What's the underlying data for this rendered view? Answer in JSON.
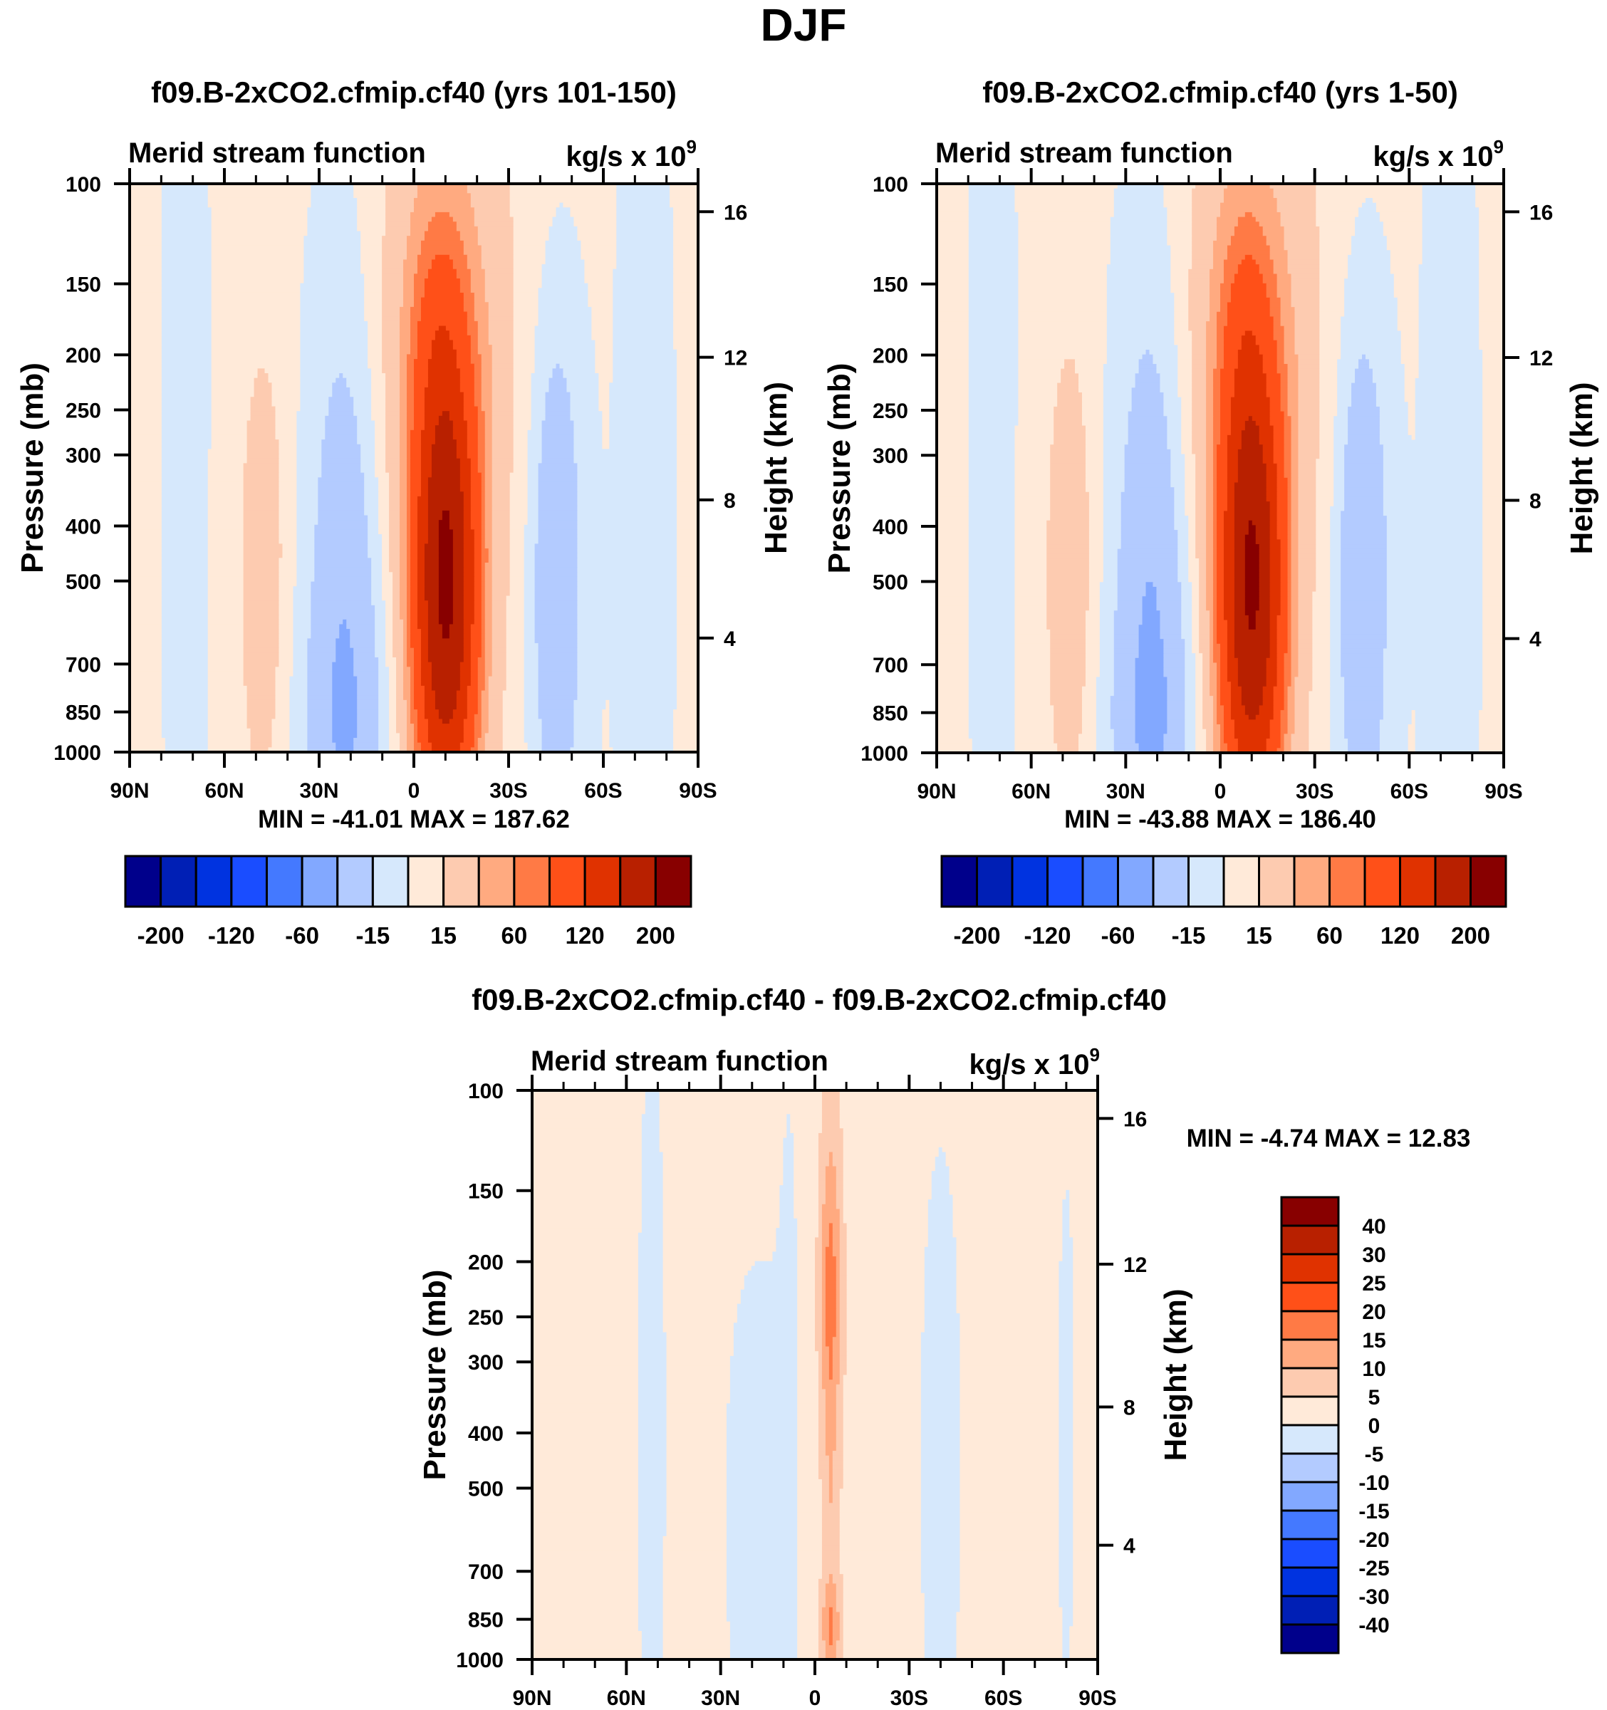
{
  "figure": {
    "title": "DJF"
  },
  "colors": {
    "main_levels": [
      "#00008b",
      "#001fb5",
      "#0033e0",
      "#1a4dff",
      "#4479ff",
      "#82a8ff",
      "#b3cbff",
      "#d6e8fc",
      "#ffead9",
      "#fdcbb0",
      "#ffaa80",
      "#ff7a45",
      "#ff5018",
      "#e03200",
      "#b82000",
      "#880000"
    ],
    "diff_levels": [
      "#00008b",
      "#001fb5",
      "#0033e0",
      "#1a4dff",
      "#4479ff",
      "#82a8ff",
      "#b3cbff",
      "#d6e8fc",
      "#ffead9",
      "#fdcbb0",
      "#ffaa80",
      "#ff7a45",
      "#ff5018",
      "#e03200",
      "#b82000",
      "#880000"
    ]
  },
  "chart_data": [
    {
      "id": "panel-left",
      "type": "heatmap",
      "title": "f09.B-2xCO2.cfmip.cf40 (yrs 101-150)",
      "left_string": "Merid stream function",
      "right_string": "kg/s x 10",
      "right_string_exp": "9",
      "xlabel": "",
      "ylabel": "Pressure (mb)",
      "ylabel_right": "Height (km)",
      "x_range": [
        90,
        -90
      ],
      "x_ticks": [
        {
          "v": 90,
          "label": "90N"
        },
        {
          "v": 60,
          "label": "60N"
        },
        {
          "v": 30,
          "label": "30N"
        },
        {
          "v": 0,
          "label": "0"
        },
        {
          "v": -30,
          "label": "30S"
        },
        {
          "v": -60,
          "label": "60S"
        },
        {
          "v": -90,
          "label": "90S"
        }
      ],
      "y_range": [
        100,
        1000
      ],
      "y_scale": "log",
      "y_ticks": [
        100,
        150,
        200,
        250,
        300,
        400,
        500,
        700,
        850,
        1000
      ],
      "y_right_ticks": [
        {
          "km": 16,
          "p": 112
        },
        {
          "km": 12,
          "p": 202
        },
        {
          "km": 8,
          "p": 360
        },
        {
          "km": 4,
          "p": 630
        }
      ],
      "minmax_text": "MIN = -41.01   MAX = 187.62",
      "min": -41.01,
      "max": 187.62,
      "levels": [
        -200,
        -160,
        -120,
        -80,
        -60,
        -40,
        -15,
        0,
        15,
        40,
        60,
        80,
        120,
        160,
        200
      ],
      "colorbar_labels": [
        "-200",
        "-120",
        "-60",
        "-15",
        "15",
        "60",
        "120",
        "200"
      ],
      "colorbar_label_levels": [
        -200,
        -120,
        -60,
        -15,
        15,
        60,
        120,
        200
      ],
      "features": [
        {
          "lat": -10,
          "p": 550,
          "amp": 188,
          "wlat": 11,
          "wp": 0.42,
          "sharp": 2.2
        },
        {
          "lat": -8,
          "p": 180,
          "amp": 70,
          "wlat": 14,
          "wp": 0.35,
          "sharp": 1.6
        },
        {
          "lat": -45,
          "p": 500,
          "amp": -41,
          "wlat": 8,
          "wp": 0.45,
          "sharp": 2.0
        },
        {
          "lat": 22,
          "p": 550,
          "amp": -36,
          "wlat": 11,
          "wp": 0.55,
          "sharp": 1.8
        },
        {
          "lat": 22,
          "p": 900,
          "amp": -20,
          "wlat": 14,
          "wp": 0.2,
          "sharp": 1.5
        },
        {
          "lat": 48,
          "p": 500,
          "amp": 26,
          "wlat": 8,
          "wp": 0.45,
          "sharp": 2.0
        },
        {
          "lat": -72,
          "p": 400,
          "amp": -8,
          "wlat": 12,
          "wp": 1.2,
          "sharp": 1.0
        },
        {
          "lat": 72,
          "p": 300,
          "amp": -6,
          "wlat": 12,
          "wp": 1.5,
          "sharp": 1.0
        },
        {
          "lat": -25,
          "p": 200,
          "amp": 10,
          "wlat": 14,
          "wp": 0.9,
          "sharp": 1.0
        }
      ],
      "background": 3
    },
    {
      "id": "panel-right",
      "type": "heatmap",
      "title": "f09.B-2xCO2.cfmip.cf40 (yrs 1-50)",
      "left_string": "Merid stream function",
      "right_string": "kg/s x 10",
      "right_string_exp": "9",
      "xlabel": "",
      "ylabel": "Pressure (mb)",
      "ylabel_right": "Height (km)",
      "x_range": [
        90,
        -90
      ],
      "x_ticks": [
        {
          "v": 90,
          "label": "90N"
        },
        {
          "v": 60,
          "label": "60N"
        },
        {
          "v": 30,
          "label": "30N"
        },
        {
          "v": 0,
          "label": "0"
        },
        {
          "v": -30,
          "label": "30S"
        },
        {
          "v": -60,
          "label": "60S"
        },
        {
          "v": -90,
          "label": "90S"
        }
      ],
      "y_range": [
        100,
        1000
      ],
      "y_scale": "log",
      "y_ticks": [
        100,
        150,
        200,
        250,
        300,
        400,
        500,
        700,
        850,
        1000
      ],
      "y_right_ticks": [
        {
          "km": 16,
          "p": 112
        },
        {
          "km": 12,
          "p": 202
        },
        {
          "km": 8,
          "p": 360
        },
        {
          "km": 4,
          "p": 630
        }
      ],
      "minmax_text": "MIN = -43.88   MAX = 186.40",
      "min": -43.88,
      "max": 186.4,
      "levels": [
        -200,
        -160,
        -120,
        -80,
        -60,
        -40,
        -15,
        0,
        15,
        40,
        60,
        80,
        120,
        160,
        200
      ],
      "colorbar_labels": [
        "-200",
        "-120",
        "-60",
        "-15",
        "15",
        "60",
        "120",
        "200"
      ],
      "colorbar_label_levels": [
        -200,
        -120,
        -60,
        -15,
        15,
        60,
        120,
        200
      ],
      "features": [
        {
          "lat": -10,
          "p": 550,
          "amp": 186,
          "wlat": 11,
          "wp": 0.42,
          "sharp": 2.2
        },
        {
          "lat": -8,
          "p": 180,
          "amp": 68,
          "wlat": 14,
          "wp": 0.35,
          "sharp": 1.6
        },
        {
          "lat": -45,
          "p": 500,
          "amp": -44,
          "wlat": 8,
          "wp": 0.45,
          "sharp": 2.0
        },
        {
          "lat": 22,
          "p": 550,
          "amp": -40,
          "wlat": 11,
          "wp": 0.55,
          "sharp": 1.8
        },
        {
          "lat": 22,
          "p": 900,
          "amp": -20,
          "wlat": 14,
          "wp": 0.2,
          "sharp": 1.5
        },
        {
          "lat": 48,
          "p": 500,
          "amp": 28,
          "wlat": 8,
          "wp": 0.45,
          "sharp": 2.0
        },
        {
          "lat": -72,
          "p": 400,
          "amp": -8,
          "wlat": 12,
          "wp": 1.2,
          "sharp": 1.0
        },
        {
          "lat": 72,
          "p": 300,
          "amp": -6,
          "wlat": 12,
          "wp": 1.5,
          "sharp": 1.0
        },
        {
          "lat": -25,
          "p": 200,
          "amp": 10,
          "wlat": 14,
          "wp": 0.9,
          "sharp": 1.0
        }
      ],
      "background": 3
    },
    {
      "id": "panel-diff",
      "type": "heatmap",
      "title": "f09.B-2xCO2.cfmip.cf40 - f09.B-2xCO2.cfmip.cf40",
      "left_string": "Merid stream function",
      "right_string": "kg/s x 10",
      "right_string_exp": "9",
      "xlabel": "",
      "ylabel": "Pressure (mb)",
      "ylabel_right": "Height (km)",
      "x_range": [
        90,
        -90
      ],
      "x_ticks": [
        {
          "v": 90,
          "label": "90N"
        },
        {
          "v": 60,
          "label": "60N"
        },
        {
          "v": 30,
          "label": "30N"
        },
        {
          "v": 0,
          "label": "0"
        },
        {
          "v": -30,
          "label": "30S"
        },
        {
          "v": -60,
          "label": "60S"
        },
        {
          "v": -90,
          "label": "90S"
        }
      ],
      "y_range": [
        100,
        1000
      ],
      "y_scale": "log",
      "y_ticks": [
        100,
        150,
        200,
        250,
        300,
        400,
        500,
        700,
        850,
        1000
      ],
      "y_right_ticks": [
        {
          "km": 16,
          "p": 112
        },
        {
          "km": 12,
          "p": 202
        },
        {
          "km": 8,
          "p": 360
        },
        {
          "km": 4,
          "p": 630
        }
      ],
      "minmax_text": "MIN =  -4.74  MAX =  12.83",
      "min": -4.74,
      "max": 12.83,
      "levels": [
        -40,
        -30,
        -25,
        -20,
        -15,
        -10,
        -5,
        0,
        5,
        10,
        15,
        20,
        25,
        30,
        40
      ],
      "colorbar_labels": [
        "40",
        "30",
        "25",
        "20",
        "15",
        "10",
        "5",
        "0",
        "-5",
        "-10",
        "-15",
        "-20",
        "-25",
        "-30",
        "-40"
      ],
      "colorbar_label_levels": [
        40,
        30,
        25,
        20,
        15,
        10,
        5,
        0,
        -5,
        -10,
        -15,
        -20,
        -25,
        -30,
        -40
      ],
      "features": [
        {
          "lat": -5,
          "p": 220,
          "amp": 12.8,
          "wlat": 3.5,
          "wp": 0.28,
          "sharp": 1.8
        },
        {
          "lat": -5,
          "p": 880,
          "amp": 11,
          "wlat": 3,
          "wp": 0.08,
          "sharp": 1.8
        },
        {
          "lat": -5,
          "p": 500,
          "amp": 6,
          "wlat": 3,
          "wp": 0.5,
          "sharp": 1.2
        },
        {
          "lat": 20,
          "p": 550,
          "amp": -4.7,
          "wlat": 9,
          "wp": 0.45,
          "sharp": 1.5
        },
        {
          "lat": -40,
          "p": 450,
          "amp": -4.0,
          "wlat": 8,
          "wp": 0.7,
          "sharp": 1.5
        },
        {
          "lat": 52,
          "p": 400,
          "amp": -3.0,
          "wlat": 9,
          "wp": 1.5,
          "sharp": 1.2
        },
        {
          "lat": -80,
          "p": 400,
          "amp": -2.5,
          "wlat": 9,
          "wp": 1.5,
          "sharp": 1.2
        },
        {
          "lat": 8,
          "p": 350,
          "amp": -2.5,
          "wlat": 5,
          "wp": 1.2,
          "sharp": 1.2
        }
      ],
      "background": 2
    }
  ]
}
